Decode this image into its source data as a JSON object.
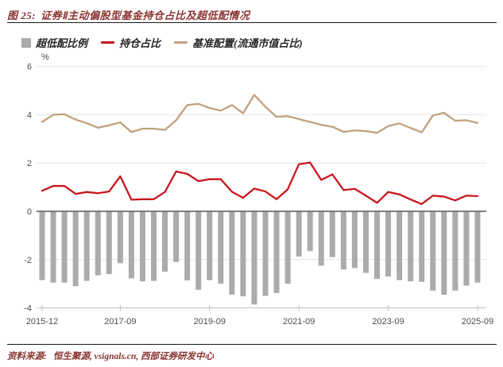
{
  "title": {
    "prefix": "图 25:",
    "text": "证券Ⅱ主动偏股型基金持仓占比及超低配情况"
  },
  "legend": [
    {
      "label": "超低配比例",
      "type": "bar",
      "color": "#ababab"
    },
    {
      "label": "持仓占比",
      "type": "line",
      "color": "#c9161d"
    },
    {
      "label": "基准配置(流通市值占比)",
      "type": "line",
      "color": "#c2a17e"
    }
  ],
  "footer": {
    "label": "资料来源:",
    "text": "恒生聚源, vsignals.cn, 西部证券研发中心"
  },
  "chart_data": {
    "type": "bar+line combo",
    "unit": "%",
    "grid": true,
    "legend_position": "top",
    "ylim": [
      -4,
      6
    ],
    "y_ticks": [
      6,
      4,
      2,
      0,
      -2,
      -4
    ],
    "x_tick_labels": [
      "2015-12",
      "2017-09",
      "2019-09",
      "2021-09",
      "2023-09",
      "2025-09"
    ],
    "x_tick_indices": [
      0,
      7,
      15,
      23,
      31,
      39
    ],
    "categories": [
      "2015-12",
      "2016-03",
      "2016-06",
      "2016-09",
      "2016-12",
      "2017-03",
      "2017-06",
      "2017-09",
      "2017-12",
      "2018-03",
      "2018-06",
      "2018-09",
      "2018-12",
      "2019-03",
      "2019-06",
      "2019-09",
      "2019-12",
      "2020-03",
      "2020-06",
      "2020-09",
      "2020-12",
      "2021-03",
      "2021-06",
      "2021-09",
      "2021-12",
      "2022-03",
      "2022-06",
      "2022-09",
      "2022-12",
      "2023-03",
      "2023-06",
      "2023-09",
      "2023-12",
      "2024-03",
      "2024-06",
      "2024-09",
      "2024-12",
      "2025-03",
      "2025-06",
      "2025-09"
    ],
    "series": [
      {
        "name": "超低配比例",
        "type": "bar",
        "color": "#ababab",
        "values": [
          -2.85,
          -2.95,
          -2.95,
          -3.1,
          -2.88,
          -2.65,
          -2.6,
          -2.15,
          -2.78,
          -2.9,
          -2.88,
          -2.5,
          -2.1,
          -2.86,
          -3.25,
          -2.85,
          -3.0,
          -3.45,
          -3.52,
          -3.86,
          -3.5,
          -3.38,
          -3.0,
          -1.87,
          -1.65,
          -2.25,
          -1.9,
          -2.41,
          -2.35,
          -2.55,
          -2.8,
          -2.7,
          -2.85,
          -2.9,
          -2.92,
          -3.28,
          -3.46,
          -3.28,
          -3.08,
          -2.95
        ]
      },
      {
        "name": "持仓占比",
        "type": "line",
        "color": "#c9161d",
        "values": [
          0.85,
          1.05,
          1.05,
          0.72,
          0.8,
          0.75,
          0.82,
          1.45,
          0.48,
          0.5,
          0.5,
          0.8,
          1.65,
          1.55,
          1.25,
          1.33,
          1.33,
          0.81,
          0.56,
          0.94,
          0.82,
          0.5,
          0.91,
          1.95,
          2.02,
          1.3,
          1.53,
          0.88,
          0.93,
          0.65,
          0.35,
          0.8,
          0.7,
          0.49,
          0.3,
          0.65,
          0.61,
          0.45,
          0.65,
          0.63
        ]
      },
      {
        "name": "基准配置(流通市值占比)",
        "type": "line",
        "color": "#c2a17e",
        "values": [
          3.7,
          4.0,
          4.02,
          3.8,
          3.65,
          3.46,
          3.56,
          3.68,
          3.28,
          3.42,
          3.42,
          3.37,
          3.77,
          4.4,
          4.45,
          4.28,
          4.17,
          4.4,
          4.06,
          4.82,
          4.33,
          3.91,
          3.94,
          3.82,
          3.7,
          3.58,
          3.5,
          3.29,
          3.35,
          3.32,
          3.25,
          3.53,
          3.64,
          3.45,
          3.27,
          3.97,
          4.08,
          3.75,
          3.77,
          3.66
        ]
      }
    ]
  }
}
